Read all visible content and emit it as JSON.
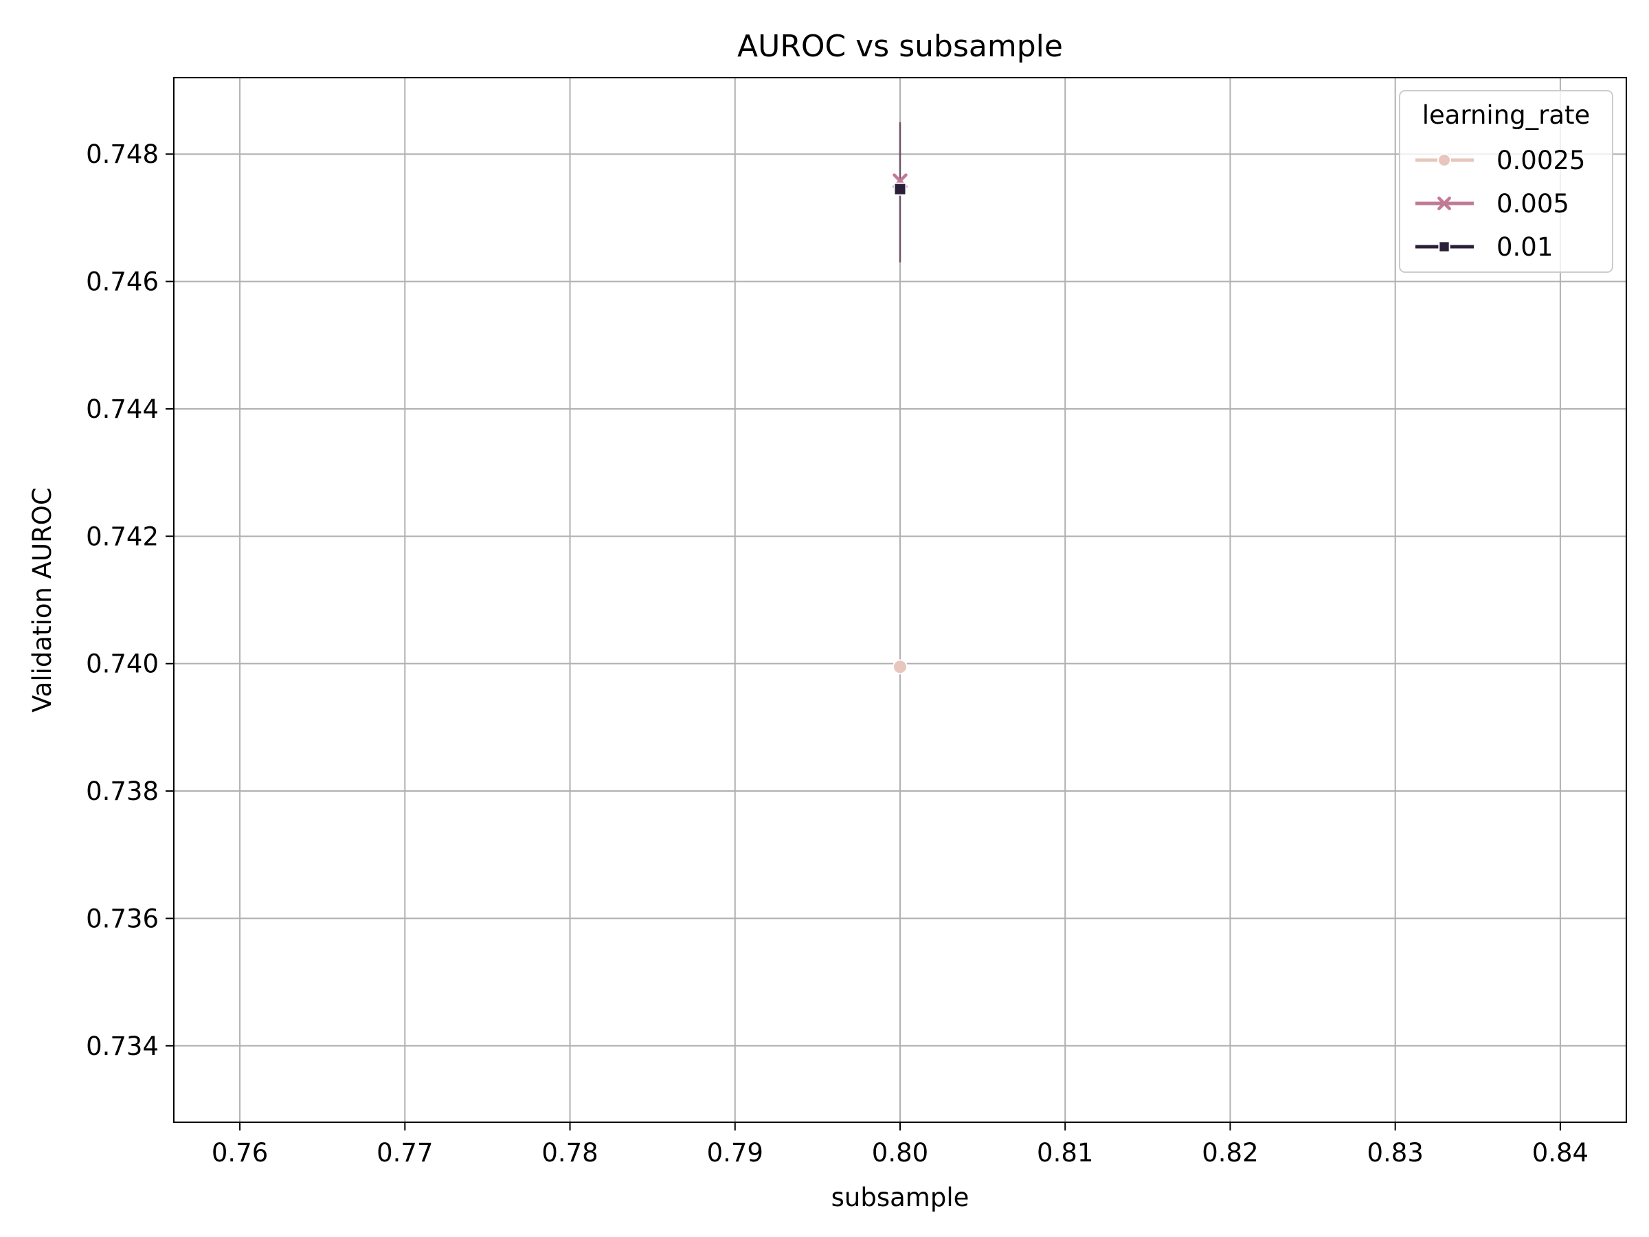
{
  "chart_data": {
    "type": "line",
    "title": "AUROC vs subsample",
    "xlabel": "subsample",
    "ylabel": "Validation AUROC",
    "xlim": [
      0.756,
      0.844
    ],
    "ylim": [
      0.7328,
      0.7492
    ],
    "xticks": [
      0.76,
      0.77,
      0.78,
      0.79,
      0.8,
      0.81,
      0.82,
      0.83,
      0.84
    ],
    "xtick_labels": [
      "0.76",
      "0.77",
      "0.78",
      "0.79",
      "0.80",
      "0.81",
      "0.82",
      "0.83",
      "0.84"
    ],
    "yticks": [
      0.734,
      0.736,
      0.738,
      0.74,
      0.742,
      0.744,
      0.746,
      0.748
    ],
    "ytick_labels": [
      "0.734",
      "0.736",
      "0.738",
      "0.740",
      "0.742",
      "0.744",
      "0.746",
      "0.748"
    ],
    "grid": true,
    "legend": {
      "title": "learning_rate",
      "placement": "upper-right"
    },
    "series": [
      {
        "name": "0.0025",
        "color": "#e8c6bd",
        "marker": "circle",
        "x": [
          0.8
        ],
        "y": [
          0.73995
        ],
        "err_low": [
          0.73995
        ],
        "err_high": [
          0.73995
        ]
      },
      {
        "name": "0.005",
        "color": "#c17a94",
        "marker": "x",
        "x": [
          0.8
        ],
        "y": [
          0.74758
        ],
        "err_low": [
          0.7463
        ],
        "err_high": [
          0.7485
        ]
      },
      {
        "name": "0.01",
        "color": "#2b1f3a",
        "marker": "square",
        "x": [
          0.8
        ],
        "y": [
          0.74745
        ],
        "err_low": [
          0.7463
        ],
        "err_high": [
          0.7485
        ]
      }
    ]
  }
}
